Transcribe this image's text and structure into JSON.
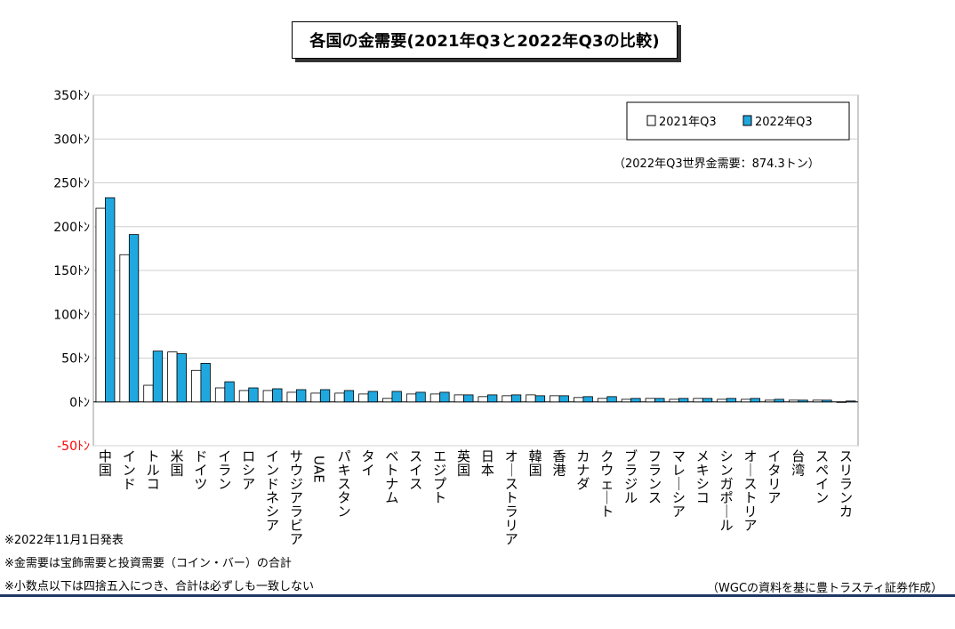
{
  "title": "各国の金需要(2021年Q3と2022年Q3の比較)",
  "annotation": "（2022年Q3世界金需要：874.3トン）",
  "notes": [
    "※2022年11月1日発表",
    "※金需要は宝飾需要と投資需要（コイン・バー）の合計",
    "※小数点以下は四捨五入につき、合計は必ずしも一致しない"
  ],
  "source": "（WGCの資料を基に豊トラスティ証券作成）",
  "colors": {
    "series1_fill": "#ffffff",
    "series2_fill": "#1fa8e0",
    "negative_tick": "#ff0000",
    "bottom_rule": "#1f3864"
  },
  "chart_data": {
    "type": "bar",
    "unit": "トン",
    "ylim": [
      -50,
      350
    ],
    "yticks": [
      {
        "value": 350,
        "label": "350ﾄﾝ"
      },
      {
        "value": 300,
        "label": "300ﾄﾝ"
      },
      {
        "value": 250,
        "label": "250ﾄﾝ"
      },
      {
        "value": 200,
        "label": "200ﾄﾝ"
      },
      {
        "value": 150,
        "label": "150ﾄﾝ"
      },
      {
        "value": 100,
        "label": "100ﾄﾝ"
      },
      {
        "value": 50,
        "label": "50ﾄﾝ"
      },
      {
        "value": 0,
        "label": "0ﾄﾝ"
      },
      {
        "value": -50,
        "label": "-50ﾄﾝ"
      }
    ],
    "grid": true,
    "legend_position": "top-right",
    "categories": [
      "中国",
      "インド",
      "トルコ",
      "米国",
      "ドイツ",
      "イラン",
      "ロシア",
      "インドネシア",
      "サウジアラビア",
      "UAE",
      "パキスタン",
      "タイ",
      "ベトナム",
      "スイス",
      "エジプト",
      "英国",
      "日本",
      "オーストラリア",
      "韓国",
      "香港",
      "カナダ",
      "クウェート",
      "ブラジル",
      "フランス",
      "マレーシア",
      "メキシコ",
      "シンガポール",
      "オーストリア",
      "イタリア",
      "台湾",
      "スペイン",
      "スリランカ"
    ],
    "series": [
      {
        "name": "2021年Q3",
        "values": [
          221,
          168,
          19,
          57,
          36,
          16,
          13,
          13,
          11,
          10,
          10,
          9,
          4,
          9,
          9,
          8,
          6,
          7,
          8,
          7,
          5,
          4,
          3,
          4,
          3,
          4,
          3,
          3,
          2,
          2,
          2,
          0
        ]
      },
      {
        "name": "2022年Q3",
        "values": [
          233,
          191,
          58,
          55,
          44,
          23,
          16,
          15,
          14,
          14,
          13,
          12,
          12,
          11,
          11,
          8,
          8,
          8,
          7,
          7,
          6,
          6,
          4,
          4,
          4,
          4,
          4,
          4,
          3,
          2,
          2,
          1
        ]
      }
    ]
  }
}
